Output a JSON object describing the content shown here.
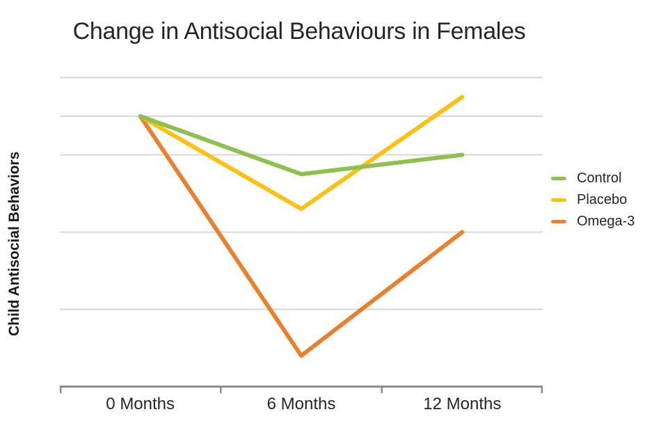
{
  "chart_data": {
    "type": "line",
    "title": "Change in Antisocial Behaviours in Females",
    "ylabel": "Child Antisocial Behaviors",
    "xlabel": "",
    "categories": [
      "0 Months",
      "6 Months",
      "12 Months"
    ],
    "series": [
      {
        "name": "Control",
        "color": "#8EC04E",
        "values": [
          7.0,
          5.5,
          6.0
        ]
      },
      {
        "name": "Placebo",
        "color": "#FBC011",
        "values": [
          7.0,
          4.6,
          7.5
        ]
      },
      {
        "name": "Omega-3",
        "color": "#E8802E",
        "values": [
          7.0,
          0.8,
          4.0
        ]
      }
    ],
    "y_axis": {
      "tick_labels_visible": false,
      "ylim": [
        0,
        8.3
      ],
      "gridline_values": [
        2,
        4,
        6,
        7,
        8
      ],
      "note": "No numeric y-axis labels shown in source; values are estimated relative units read from gridlines"
    },
    "legend_position": "right",
    "grid": "horizontal"
  },
  "colors": {
    "gridline": "#D9D9D9",
    "axis": "#8C8C8C",
    "text": "#262626",
    "background": "#FFFFFF"
  }
}
